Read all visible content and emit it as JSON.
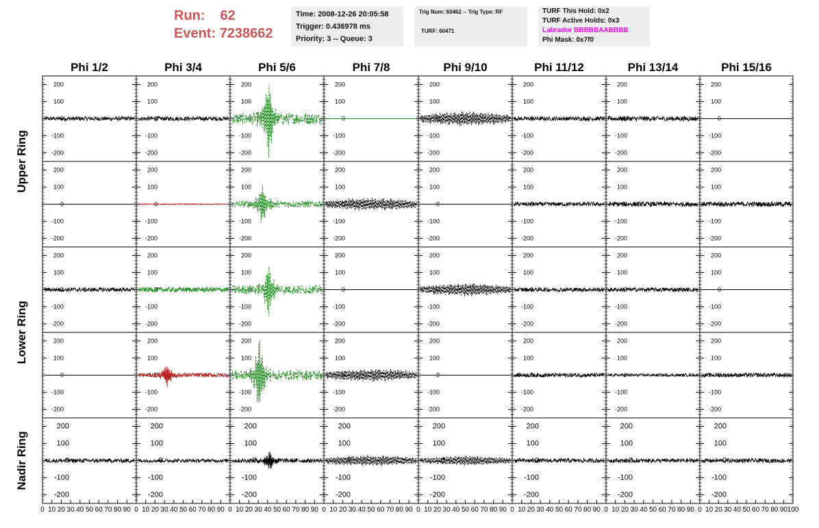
{
  "header": {
    "run_label": "Run:",
    "run_value": "62",
    "event_label": "Event:",
    "event_value": "7238662",
    "time_line": "Time: 2008-12-26 20:05:58",
    "trigger_line": "Trigger: 0.436978 ms",
    "priority_line": "Priority: 3 -- Queue: 3",
    "trig_line": "Trig Num: 60462 -- Trig Type: RF",
    "turf_line": "TURF: 60471",
    "turf_hold_line": "TURF This Hold: 0x2",
    "turf_active_line": "TURF Active Holds: 0x3",
    "labrador_line": "Labrador BBBBBAABBBB",
    "phi_mask_line": "Phi Mask: 0x7f0"
  },
  "chart_data": {
    "type": "line",
    "columns": [
      "Phi 1/2",
      "Phi 3/4",
      "Phi 5/6",
      "Phi 7/8",
      "Phi 9/10",
      "Phi 11/12",
      "Phi 13/14",
      "Phi 15/16"
    ],
    "rows": [
      "Upper Ring",
      "Lower Ring",
      "Nadir Ring"
    ],
    "xlim": [
      0,
      100
    ],
    "ylim": [
      -250,
      250
    ],
    "y_ticks": [
      "200",
      "100",
      "0",
      "-100",
      "-200"
    ],
    "x_ticks": [
      "0",
      "10",
      "20",
      "30",
      "40",
      "50",
      "60",
      "70",
      "80",
      "90",
      "100"
    ],
    "colors": {
      "black": "#000000",
      "green": "#1a8a1a",
      "red": "#b22222"
    },
    "panels": [
      [
        {
          "color": "black",
          "amplitude": 12,
          "style": "noise"
        },
        {
          "color": "black",
          "amplitude": 12,
          "style": "noise"
        },
        {
          "color": "green",
          "amplitude": 230,
          "style": "pulse",
          "peak_x": 41
        },
        {
          "color": "green",
          "amplitude": 0,
          "style": "flat"
        },
        {
          "color": "black",
          "amplitude": 45,
          "style": "dashed",
          "envelope": "bulge"
        },
        {
          "color": "black",
          "amplitude": 12,
          "style": "noise"
        },
        {
          "color": "black",
          "amplitude": 14,
          "style": "noise"
        },
        {
          "color": "black",
          "amplitude": 0,
          "style": "flat"
        }
      ],
      [
        {
          "color": "black",
          "amplitude": 0,
          "style": "flat"
        },
        {
          "color": "red",
          "amplitude": 3,
          "style": "noise"
        },
        {
          "color": "green",
          "amplitude": 120,
          "style": "pulse",
          "peak_x": 34
        },
        {
          "color": "black",
          "amplitude": 40,
          "style": "dashed",
          "envelope": "bulge"
        },
        {
          "color": "black",
          "amplitude": 0,
          "style": "flat"
        },
        {
          "color": "black",
          "amplitude": 12,
          "style": "noise"
        },
        {
          "color": "black",
          "amplitude": 14,
          "style": "noise"
        },
        {
          "color": "black",
          "amplitude": 14,
          "style": "noise"
        }
      ],
      [
        {
          "color": "black",
          "amplitude": 12,
          "style": "noise"
        },
        {
          "color": "green",
          "amplitude": 14,
          "style": "noise"
        },
        {
          "color": "green",
          "amplitude": 160,
          "style": "pulse",
          "peak_x": 41
        },
        {
          "color": "black",
          "amplitude": 0,
          "style": "flat"
        },
        {
          "color": "black",
          "amplitude": 40,
          "style": "dashed",
          "envelope": "bulge"
        },
        {
          "color": "black",
          "amplitude": 12,
          "style": "noise"
        },
        {
          "color": "black",
          "amplitude": 12,
          "style": "noise"
        },
        {
          "color": "black",
          "amplitude": 0,
          "style": "flat"
        }
      ],
      [
        {
          "color": "black",
          "amplitude": 0,
          "style": "flat"
        },
        {
          "color": "red",
          "amplitude": 60,
          "style": "pulse",
          "peak_x": 33
        },
        {
          "color": "green",
          "amplitude": 200,
          "style": "pulse",
          "peak_x": 31
        },
        {
          "color": "black",
          "amplitude": 40,
          "style": "dashed",
          "envelope": "bulge"
        },
        {
          "color": "black",
          "amplitude": 0,
          "style": "flat"
        },
        {
          "color": "black",
          "amplitude": 12,
          "style": "noise"
        },
        {
          "color": "black",
          "amplitude": 8,
          "style": "noise"
        },
        {
          "color": "black",
          "amplitude": 12,
          "style": "noise"
        }
      ],
      [
        {
          "color": "black",
          "amplitude": 12,
          "style": "noise"
        },
        {
          "color": "black",
          "amplitude": 10,
          "style": "noise"
        },
        {
          "color": "black",
          "amplitude": 60,
          "style": "pulse",
          "peak_x": 42
        },
        {
          "color": "black",
          "amplitude": 35,
          "style": "dashed",
          "envelope": "bulge"
        },
        {
          "color": "black",
          "amplitude": 30,
          "style": "dashed",
          "envelope": "bulge"
        },
        {
          "color": "black",
          "amplitude": 12,
          "style": "noise"
        },
        {
          "color": "black",
          "amplitude": 12,
          "style": "noise"
        },
        {
          "color": "black",
          "amplitude": 12,
          "style": "noise"
        }
      ]
    ]
  }
}
